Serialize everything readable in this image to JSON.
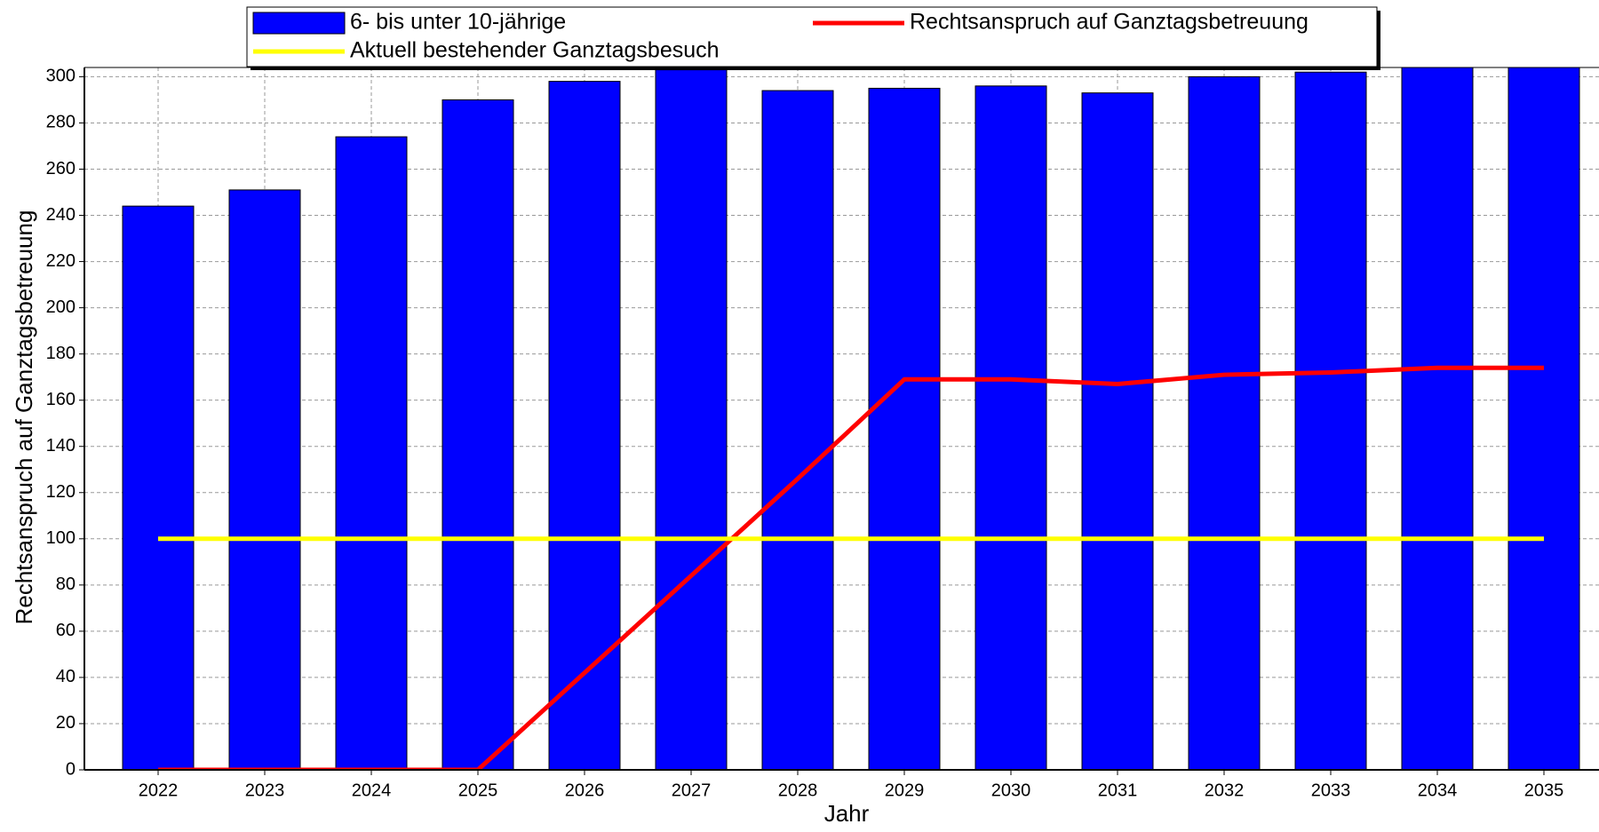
{
  "chart_data": {
    "type": "bar",
    "x_label": "Jahr",
    "y_label": "Rechtsanspruch auf Ganztagsbetreuung",
    "categories": [
      "2022",
      "2023",
      "2024",
      "2025",
      "2026",
      "2027",
      "2028",
      "2029",
      "2030",
      "2031",
      "2032",
      "2033",
      "2034",
      "2035"
    ],
    "series": [
      {
        "name": "6- bis unter 10-jährige",
        "type": "bar",
        "color": "#0000ff",
        "values": [
          244,
          251,
          274,
          290,
          298,
          303,
          294,
          295,
          296,
          293,
          300,
          302,
          306,
          306
        ]
      },
      {
        "name": "Rechtsanspruch auf Ganztagsbetreuung",
        "type": "line",
        "color": "#ff0000",
        "values": [
          0,
          0,
          0,
          0,
          42,
          84,
          126,
          169,
          169,
          167,
          171,
          172,
          174,
          174
        ]
      },
      {
        "name": "Aktuell bestehender Ganztagsbesuch",
        "type": "line",
        "color": "#ffff00",
        "values": [
          100,
          100,
          100,
          100,
          100,
          100,
          100,
          100,
          100,
          100,
          100,
          100,
          100,
          100
        ]
      }
    ],
    "ylim": [
      0,
      304
    ],
    "yticks": [
      0,
      20,
      40,
      60,
      80,
      100,
      120,
      140,
      160,
      180,
      200,
      220,
      240,
      260,
      280,
      300
    ],
    "grid": true,
    "legend": "top"
  }
}
